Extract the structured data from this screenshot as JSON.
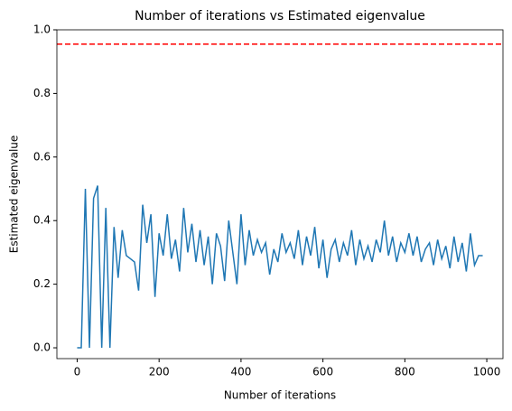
{
  "chart_data": {
    "type": "line",
    "title": "Number of iterations vs Estimated eigenvalue",
    "x_label": "Number of iterations",
    "y_label": "Estimated eigenvalue",
    "x": [
      0,
      10,
      20,
      30,
      40,
      50,
      60,
      70,
      80,
      90,
      100,
      110,
      120,
      130,
      140,
      150,
      160,
      170,
      180,
      190,
      200,
      210,
      220,
      230,
      240,
      250,
      260,
      270,
      280,
      290,
      300,
      310,
      320,
      330,
      340,
      350,
      360,
      370,
      380,
      390,
      400,
      410,
      420,
      430,
      440,
      450,
      460,
      470,
      480,
      490,
      500,
      510,
      520,
      530,
      540,
      550,
      560,
      570,
      580,
      590,
      600,
      610,
      620,
      630,
      640,
      650,
      660,
      670,
      680,
      690,
      700,
      710,
      720,
      730,
      740,
      750,
      760,
      770,
      780,
      790,
      800,
      810,
      820,
      830,
      840,
      850,
      860,
      870,
      880,
      890,
      900,
      910,
      920,
      930,
      940,
      950,
      960,
      970,
      980,
      990
    ],
    "series": [
      {
        "name": "Estimated eigenvalue",
        "color": "#1f77b4",
        "values": [
          0,
          0,
          0.5,
          0.0,
          0.47,
          0.51,
          0.0,
          0.44,
          0.0,
          0.38,
          0.22,
          0.37,
          0.29,
          0.28,
          0.27,
          0.18,
          0.45,
          0.33,
          0.42,
          0.16,
          0.36,
          0.29,
          0.42,
          0.28,
          0.34,
          0.24,
          0.44,
          0.3,
          0.39,
          0.27,
          0.37,
          0.26,
          0.35,
          0.2,
          0.36,
          0.32,
          0.21,
          0.4,
          0.3,
          0.2,
          0.42,
          0.26,
          0.37,
          0.29,
          0.34,
          0.3,
          0.33,
          0.23,
          0.31,
          0.27,
          0.36,
          0.3,
          0.33,
          0.28,
          0.37,
          0.26,
          0.35,
          0.29,
          0.38,
          0.25,
          0.34,
          0.22,
          0.31,
          0.34,
          0.27,
          0.33,
          0.29,
          0.37,
          0.26,
          0.34,
          0.28,
          0.32,
          0.27,
          0.34,
          0.3,
          0.4,
          0.29,
          0.35,
          0.27,
          0.33,
          0.3,
          0.36,
          0.29,
          0.35,
          0.27,
          0.31,
          0.33,
          0.26,
          0.34,
          0.28,
          0.32,
          0.25,
          0.35,
          0.27,
          0.33,
          0.24,
          0.36,
          0.26,
          0.29,
          0.29
        ]
      }
    ],
    "hline": {
      "value": 0.955,
      "color": "#ff0000",
      "style": "dashed"
    },
    "xlim": [
      -49.5,
      1039.5
    ],
    "ylim": [
      -0.034,
      1.0
    ],
    "xticks": [
      0,
      200,
      400,
      600,
      800,
      1000
    ],
    "yticks": [
      {
        "value": 0,
        "label": "0.0"
      },
      0.2,
      0.4,
      0.6,
      0.8,
      {
        "value": 1,
        "label": "1.0"
      }
    ]
  }
}
